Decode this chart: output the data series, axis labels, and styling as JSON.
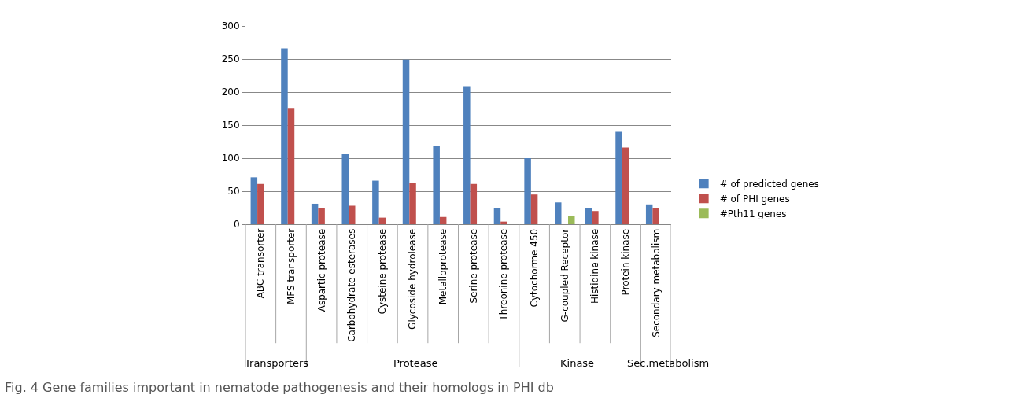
{
  "chart_data": {
    "type": "bar",
    "categories": [
      "ABC transorter",
      "MFS transporter",
      "Aspartic protease",
      "Carbohydrate esterases",
      "Cysteine protease",
      "Glycoside hydrolease",
      "Metalloprotease",
      "Serine protease",
      "Threonine protease",
      "Cytochorme 450",
      "G-coupled Receptor",
      "Histidine kinase",
      "Protein kinase",
      "Secondary metabolism"
    ],
    "series": [
      {
        "name": "# of predicted genes",
        "color": "#4f81bd",
        "values": [
          71,
          266,
          31,
          106,
          66,
          249,
          119,
          209,
          24,
          100,
          33,
          24,
          140,
          30
        ]
      },
      {
        "name": "# of PHI genes",
        "color": "#c0504d",
        "values": [
          61,
          176,
          24,
          28,
          10,
          62,
          11,
          61,
          4,
          45,
          null,
          20,
          116,
          24
        ]
      },
      {
        "name": "#Pth11 genes",
        "color": "#9bbb59",
        "values": [
          null,
          null,
          null,
          null,
          null,
          null,
          null,
          null,
          null,
          null,
          12,
          null,
          null,
          null
        ]
      }
    ],
    "ylim": [
      0,
      300
    ],
    "yticks": [
      0,
      50,
      100,
      150,
      200,
      250,
      300
    ],
    "grid": "y",
    "legend": "right",
    "annotations": [
      "Transporters",
      "Protease",
      "Kinase",
      "Sec.metabolism",
      "Fig. 4 Gene families important in nematode pathogenesis and their homologs in PHI db"
    ]
  }
}
